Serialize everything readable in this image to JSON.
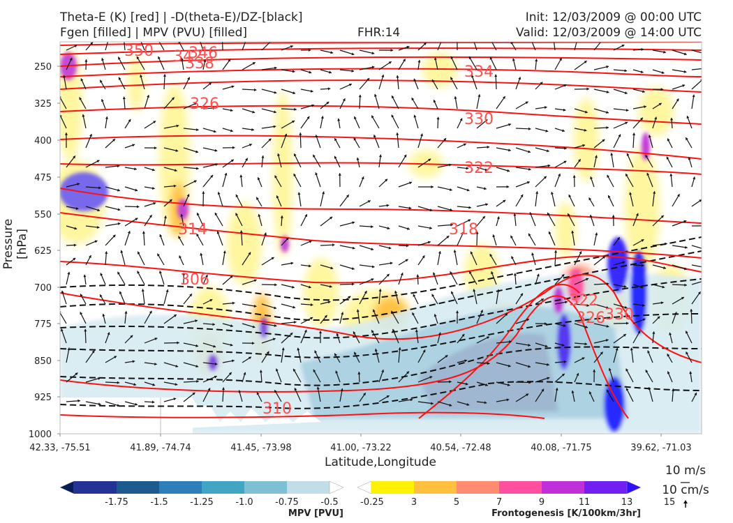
{
  "header": {
    "line1_left": "Theta-E (K) [red] | -D(theta-E)/DZ-[black]",
    "line2_left": "Fgen [filled] | MPV (PVU) [filled]",
    "fhr": "FHR:14",
    "init": "Init: 12/03/2009 @ 00:00 UTC",
    "valid": "Valid: 12/03/2009 @ 14:00 UTC"
  },
  "chart_data": {
    "type": "cross-section",
    "ylabel": "Pressure [hPa]",
    "xlabel": "Latitude,Longitude",
    "y_ticks": [
      "250",
      "325",
      "400",
      "475",
      "550",
      "625",
      "700",
      "775",
      "850",
      "925",
      "1000"
    ],
    "x_ticks": [
      "42.33, -75.51",
      "41.89, -74.74",
      "41.45, -73.98",
      "41.00, -73.22",
      "40.54, -72.48",
      "40.08, -71.75",
      "39.62, -71.03"
    ],
    "theta_e_labels": [
      "350",
      "342",
      "346",
      "338",
      "334",
      "326",
      "330",
      "322",
      "318",
      "314",
      "306",
      "322",
      "326",
      "330",
      "310"
    ],
    "mpv_colorbar": {
      "title": "MPV [PVU]",
      "labels": [
        "-1.75",
        "-1.5",
        "-1.25",
        "-1.0",
        "-0.75",
        "-0.5",
        "-0.25"
      ],
      "colors": [
        "#081d58",
        "#253494",
        "#1d5b8e",
        "#2c7fb8",
        "#41a6c4",
        "#7fbfd4",
        "#c0dde8",
        "#ffffff"
      ]
    },
    "fgen_colorbar": {
      "title": "Frontogenesis [K/100km/3hr]",
      "labels": [
        "3",
        "5",
        "7",
        "9",
        "11",
        "13",
        "15"
      ],
      "colors": [
        "#ffffff",
        "#fff200",
        "#ffc040",
        "#ff8c70",
        "#ff50a0",
        "#c030d8",
        "#7020f0",
        "#3010ff"
      ]
    },
    "wind_key": {
      "label1": "10 m/s",
      "label2": "10 cm/s"
    }
  }
}
